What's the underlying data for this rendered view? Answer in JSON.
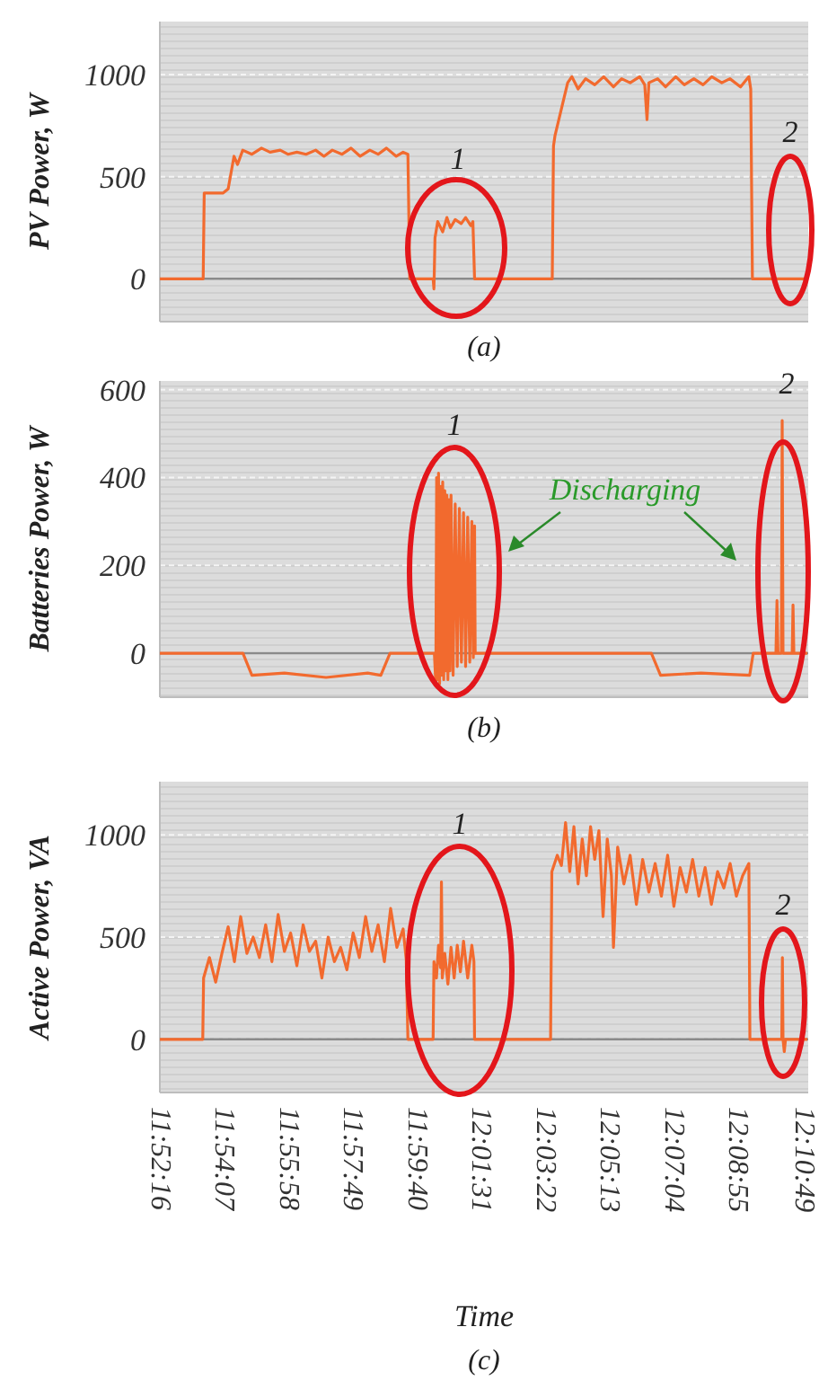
{
  "chart_data": [
    {
      "type": "line",
      "ylabel": "PV Power, W",
      "xlim": [
        11.8702,
        12.1815
      ],
      "ylim": [
        -210,
        1260
      ],
      "yticks": [
        0,
        500,
        1000
      ],
      "grid": "y",
      "tick_labels": "y",
      "ref_lines": [
        {
          "axis": "y",
          "value": 0,
          "color": "#8a8a8a"
        }
      ],
      "series": [
        {
          "color": "#f26a2e",
          "x": [
            11.8702,
            11.891,
            11.8915,
            11.9006,
            11.903,
            11.9058,
            11.9075,
            11.91,
            11.9144,
            11.919,
            11.9231,
            11.928,
            11.9317,
            11.936,
            11.9404,
            11.945,
            11.949,
            11.953,
            11.9577,
            11.962,
            11.9664,
            11.971,
            11.975,
            11.979,
            11.9837,
            11.987,
            11.9893,
            11.9902,
            12.0014,
            12.0018,
            12.0023,
            12.0036,
            12.006,
            12.008,
            12.0097,
            12.012,
            12.0149,
            12.017,
            12.0195,
            12.0205,
            12.0213,
            12.0586,
            12.0592,
            12.0599,
            12.066,
            12.068,
            12.071,
            12.0746,
            12.079,
            12.0833,
            12.088,
            12.0919,
            12.096,
            12.1006,
            12.103,
            12.1041,
            12.105,
            12.1092,
            12.113,
            12.1179,
            12.122,
            12.1266,
            12.131,
            12.1352,
            12.14,
            12.1439,
            12.149,
            12.153,
            12.1539,
            12.1547,
            12.1811
          ],
          "values": [
            0,
            0,
            420,
            420,
            440,
            600,
            560,
            630,
            610,
            640,
            620,
            630,
            610,
            620,
            610,
            630,
            600,
            630,
            610,
            640,
            600,
            630,
            610,
            640,
            600,
            620,
            610,
            0,
            0,
            -50,
            200,
            280,
            230,
            300,
            250,
            290,
            270,
            300,
            260,
            280,
            0,
            0,
            650,
            700,
            960,
            990,
            930,
            980,
            950,
            990,
            940,
            980,
            960,
            990,
            950,
            780,
            960,
            980,
            940,
            990,
            950,
            980,
            950,
            990,
            960,
            980,
            940,
            990,
            930,
            0,
            0
          ]
        }
      ],
      "annotations": [
        "1",
        "2",
        "(a)"
      ]
    },
    {
      "type": "line",
      "ylabel": "Batteries Power, W",
      "xlim": [
        11.8702,
        12.1815
      ],
      "ylim": [
        -100,
        620
      ],
      "yticks": [
        0,
        200,
        400,
        600
      ],
      "grid": "y",
      "tick_labels": "y",
      "ref_lines": [
        {
          "axis": "y",
          "value": 0,
          "color": "#8a8a8a"
        }
      ],
      "series": [
        {
          "color": "#f26a2e",
          "x": [
            11.8702,
            11.9101,
            11.9144,
            11.93,
            11.95,
            11.97,
            11.9763,
            11.9807,
            12.002,
            12.0027,
            12.0031,
            12.0036,
            12.004,
            12.0045,
            12.005,
            12.0055,
            12.006,
            12.0065,
            12.007,
            12.0075,
            12.008,
            12.0085,
            12.009,
            12.0095,
            12.01,
            12.011,
            12.012,
            12.013,
            12.014,
            12.015,
            12.016,
            12.017,
            12.018,
            12.019,
            12.02,
            12.0207,
            12.0213,
            12.0216,
            12.1062,
            12.1106,
            12.13,
            12.1534,
            12.1551,
            12.166,
            12.1665,
            12.167,
            12.1686,
            12.169,
            12.1694,
            12.1738,
            12.1742,
            12.1746,
            12.1811
          ],
          "values": [
            0,
            0,
            -50,
            -45,
            -55,
            -45,
            -50,
            0,
            0,
            -70,
            400,
            -60,
            410,
            -70,
            380,
            -50,
            390,
            -60,
            370,
            -40,
            360,
            -60,
            350,
            -40,
            360,
            -50,
            340,
            -30,
            330,
            -20,
            320,
            -30,
            310,
            -20,
            300,
            -10,
            290,
            0,
            0,
            -50,
            -45,
            -50,
            0,
            0,
            120,
            0,
            0,
            530,
            0,
            0,
            110,
            0,
            0
          ]
        }
      ],
      "annotations": [
        "1",
        "2",
        "Discharging",
        "(b)"
      ]
    },
    {
      "type": "line",
      "ylabel": "Active Power, VA",
      "xlabel": "Time",
      "xlim": [
        11.8702,
        12.1815
      ],
      "ylim": [
        -260,
        1260
      ],
      "yticks": [
        0,
        500,
        1000
      ],
      "grid": "y",
      "ref_lines": [
        {
          "axis": "y",
          "value": 0,
          "color": "#8a8a8a"
        }
      ],
      "xticks": [
        {
          "value": 11.87111,
          "label": "11:52:16"
        },
        {
          "value": 11.90194,
          "label": "11:54:07"
        },
        {
          "value": 11.93278,
          "label": "11:55:58"
        },
        {
          "value": 11.96361,
          "label": "11:57:49"
        },
        {
          "value": 11.99444,
          "label": "11:59:40"
        },
        {
          "value": 12.02528,
          "label": "12:01:31"
        },
        {
          "value": 12.05611,
          "label": "12:03:22"
        },
        {
          "value": 12.08694,
          "label": "12:05:13"
        },
        {
          "value": 12.11778,
          "label": "12:07:04"
        },
        {
          "value": 12.14861,
          "label": "12:08:55"
        },
        {
          "value": 12.18028,
          "label": "12:10:49"
        }
      ],
      "series": [
        {
          "color": "#f26a2e",
          "x": [
            11.8702,
            11.8908,
            11.8912,
            11.894,
            11.897,
            11.9,
            11.903,
            11.906,
            11.909,
            11.912,
            11.915,
            11.918,
            11.921,
            11.924,
            11.927,
            11.93,
            11.933,
            11.936,
            11.939,
            11.942,
            11.945,
            11.948,
            11.951,
            11.954,
            11.957,
            11.96,
            11.963,
            11.966,
            11.969,
            11.972,
            11.975,
            11.978,
            11.981,
            11.984,
            11.987,
            11.9885,
            11.9893,
            12.0014,
            12.0018,
            12.003,
            12.004,
            12.005,
            12.0054,
            12.0058,
            12.007,
            12.0085,
            12.01,
            12.0115,
            12.013,
            12.0145,
            12.016,
            12.018,
            12.02,
            12.021,
            12.0213,
            12.0578,
            12.0584,
            12.061,
            12.063,
            12.065,
            12.067,
            12.069,
            12.071,
            12.073,
            12.075,
            12.077,
            12.079,
            12.081,
            12.083,
            12.085,
            12.087,
            12.088,
            12.09,
            12.093,
            12.096,
            12.099,
            12.102,
            12.105,
            12.108,
            12.111,
            12.114,
            12.117,
            12.12,
            12.123,
            12.126,
            12.129,
            12.132,
            12.135,
            12.138,
            12.141,
            12.144,
            12.147,
            12.15,
            12.153,
            12.1535,
            12.1688,
            12.1691,
            12.1694,
            12.17,
            12.1706,
            12.1811
          ],
          "values": [
            0,
            0,
            300,
            400,
            280,
            420,
            550,
            380,
            600,
            420,
            500,
            400,
            560,
            380,
            610,
            430,
            520,
            360,
            560,
            430,
            480,
            300,
            500,
            380,
            450,
            340,
            520,
            400,
            600,
            430,
            560,
            380,
            640,
            450,
            540,
            390,
            0,
            0,
            380,
            300,
            460,
            350,
            770,
            300,
            420,
            270,
            450,
            300,
            460,
            330,
            480,
            300,
            460,
            380,
            0,
            0,
            820,
            900,
            850,
            1060,
            820,
            1040,
            760,
            980,
            800,
            1040,
            880,
            1020,
            600,
            980,
            800,
            450,
            940,
            760,
            900,
            660,
            880,
            720,
            860,
            700,
            900,
            650,
            840,
            720,
            880,
            700,
            840,
            660,
            820,
            740,
            860,
            700,
            800,
            860,
            0,
            0,
            400,
            0,
            -60,
            0,
            0
          ]
        }
      ],
      "annotations": [
        "1",
        "2",
        "(c)"
      ]
    }
  ]
}
